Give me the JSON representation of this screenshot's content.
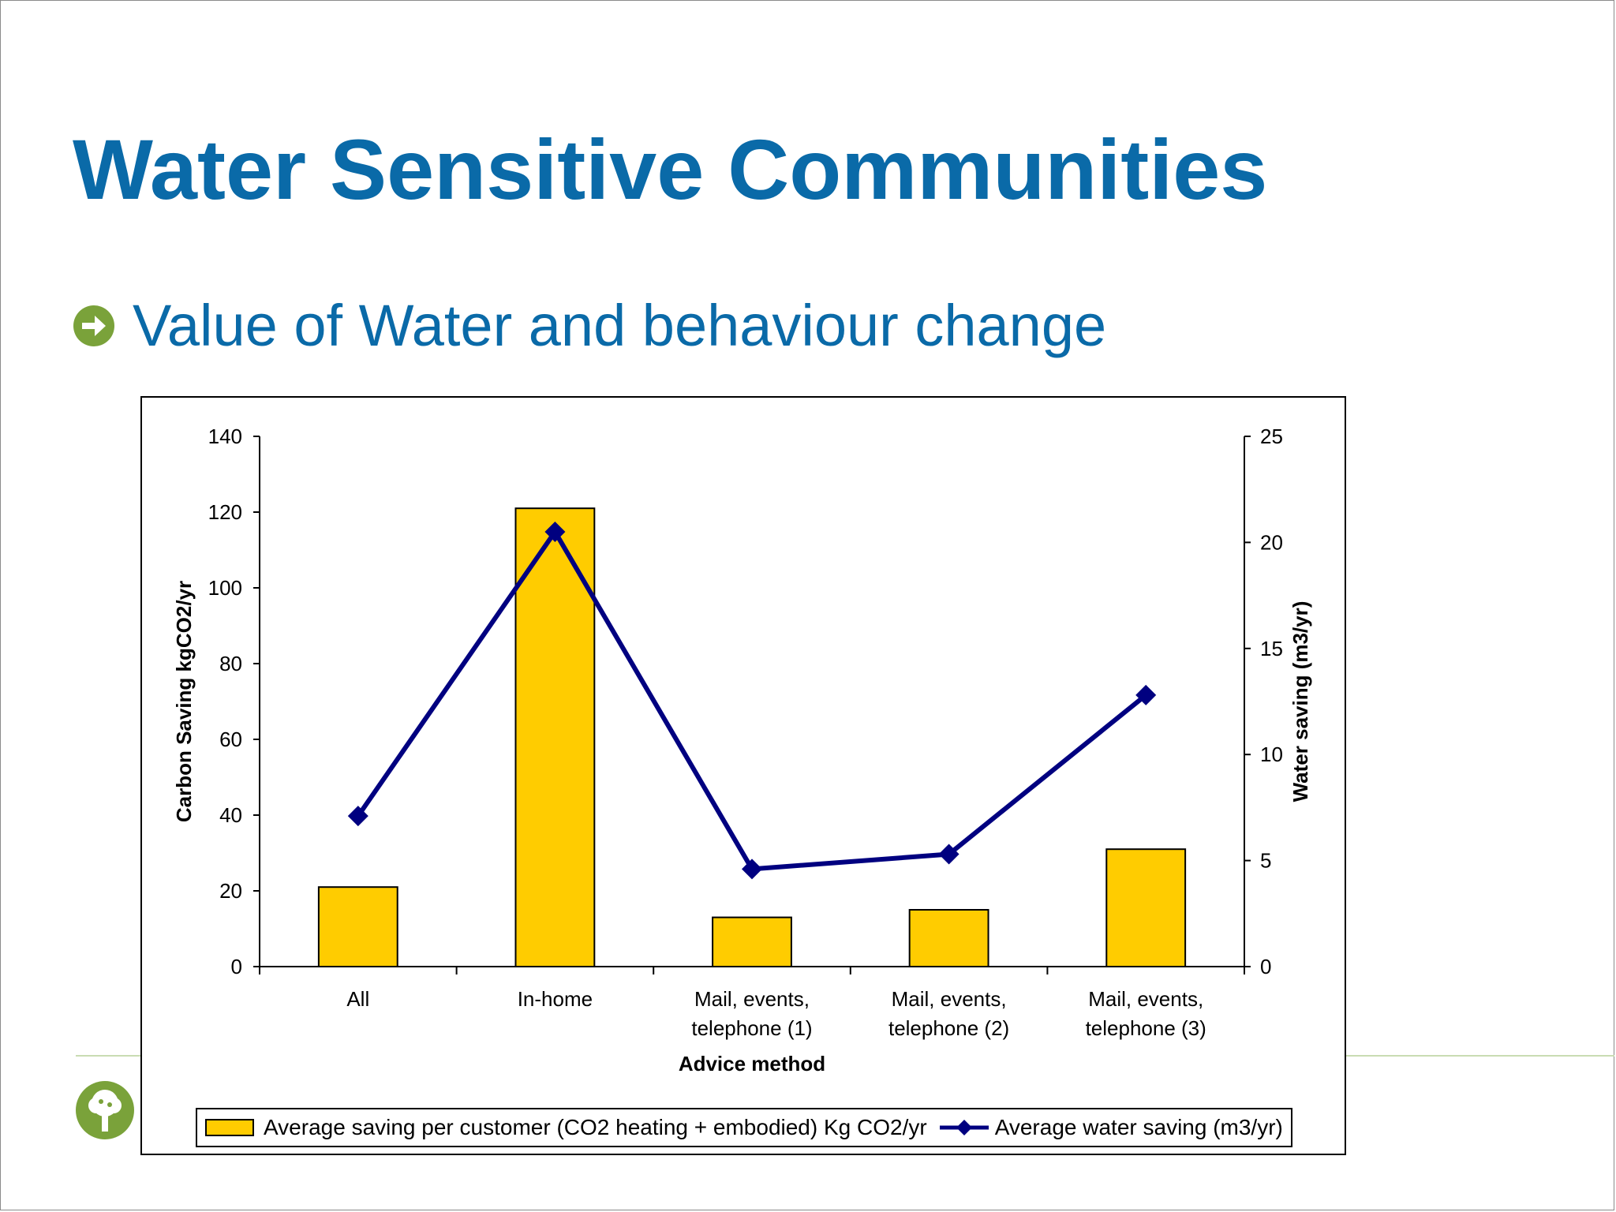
{
  "slide": {
    "title": "Water Sensitive Communities",
    "bullet": "Value of Water and behaviour change",
    "bullet_icon": "arrow-circle-icon",
    "logo_icon": "tree-logo-icon"
  },
  "colors": {
    "title": "#0a6aa8",
    "bullet_icon": "#7aa23a",
    "bar_fill": "#ffcc00",
    "line": "#000080"
  },
  "chart_data": {
    "type": "bar",
    "categories": [
      "All",
      "In-home",
      "Mail, events, telephone (1)",
      "Mail, events, telephone (2)",
      "Mail, events, telephone (3)"
    ],
    "category_lines": [
      [
        "All"
      ],
      [
        "In-home"
      ],
      [
        "Mail, events,",
        "telephone (1)"
      ],
      [
        "Mail, events,",
        "telephone (2)"
      ],
      [
        "Mail, events,",
        "telephone (3)"
      ]
    ],
    "series": [
      {
        "name": "Average saving per customer (CO2 heating + embodied) Kg CO2/yr",
        "type": "bar",
        "axis": "left",
        "values": [
          21,
          121,
          13,
          15,
          31
        ]
      },
      {
        "name": "Average water saving (m3/yr)",
        "type": "line",
        "axis": "right",
        "marker": "diamond",
        "values": [
          7.1,
          20.5,
          4.6,
          5.3,
          12.8
        ]
      }
    ],
    "xlabel": "Advice method",
    "ylabel": "Carbon Saving kgCO2/yr",
    "y2label": "Water saving (m3/yr)",
    "ylim": [
      0,
      140
    ],
    "yticks": [
      0,
      20,
      40,
      60,
      80,
      100,
      120,
      140
    ],
    "y2lim": [
      0,
      25
    ],
    "y2ticks": [
      0,
      5,
      10,
      15,
      20,
      25
    ],
    "grid": false,
    "legend_position": "bottom"
  }
}
